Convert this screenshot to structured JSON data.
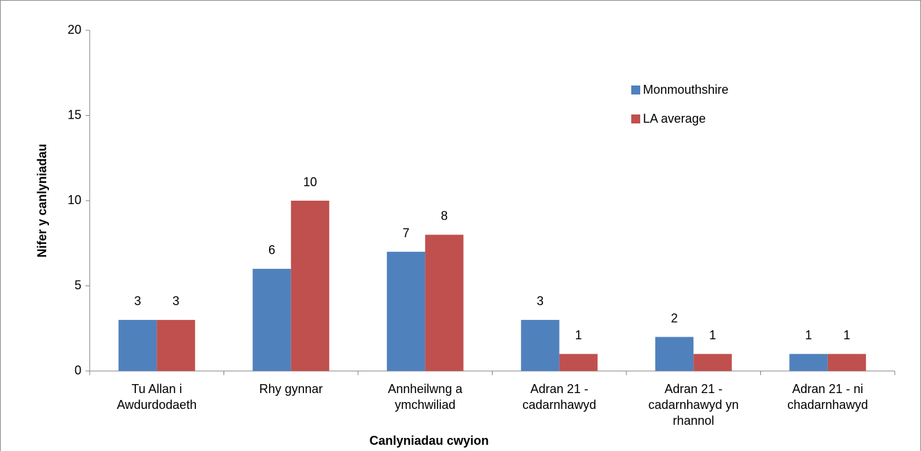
{
  "chart_data": {
    "type": "bar",
    "categories": [
      "Tu Allan i Awdurdodaeth",
      "Rhy gynnar",
      "Annheilwng a ymchwiliad",
      "Adran 21 - cadarnhawyd",
      "Adran 21 - cadarnhawyd yn rhannol",
      "Adran 21 - ni chadarnhawyd"
    ],
    "series": [
      {
        "name": "Monmouthshire",
        "color": "#4f81bd",
        "values": [
          3,
          6,
          7,
          3,
          2,
          1
        ]
      },
      {
        "name": "LA average",
        "color": "#c0504d",
        "values": [
          3,
          10,
          8,
          1,
          1,
          1
        ]
      }
    ],
    "x_label": "Canlyniadau cwyion",
    "y_label": "Nifer y canlyniadau",
    "ylim": [
      0,
      20
    ],
    "yticks": [
      0,
      5,
      10,
      15,
      20
    ],
    "grid": false,
    "legend": "upper right"
  }
}
